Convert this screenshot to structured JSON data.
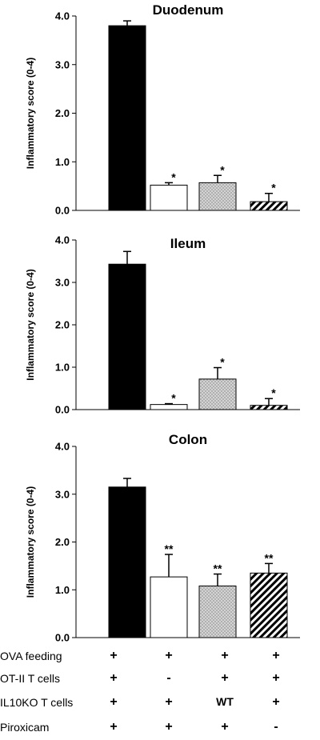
{
  "chart_data": [
    {
      "type": "bar",
      "title": "Duodenum",
      "ylabel": "Inflammatory score (0-4)",
      "ylim": [
        0,
        4
      ],
      "yticks": [
        "0.0",
        "1.0",
        "2.0",
        "3.0",
        "4.0"
      ],
      "values": [
        3.8,
        0.52,
        0.57,
        0.18
      ],
      "errors": [
        0.1,
        0.05,
        0.15,
        0.17
      ],
      "annotations": [
        "",
        "*",
        "*",
        "*"
      ]
    },
    {
      "type": "bar",
      "title": "Ileum",
      "ylabel": "Inflammatory score (0-4)",
      "ylim": [
        0,
        4
      ],
      "yticks": [
        "0.0",
        "1.0",
        "2.0",
        "3.0",
        "4.0"
      ],
      "values": [
        3.43,
        0.12,
        0.72,
        0.1
      ],
      "errors": [
        0.3,
        0.02,
        0.27,
        0.16
      ],
      "annotations": [
        "",
        "*",
        "*",
        "*"
      ]
    },
    {
      "type": "bar",
      "title": "Colon",
      "ylabel": "Inflammatory score (0-4)",
      "ylim": [
        0,
        4
      ],
      "yticks": [
        "0.0",
        "1.0",
        "2.0",
        "3.0",
        "4.0"
      ],
      "values": [
        3.15,
        1.27,
        1.08,
        1.35
      ],
      "errors": [
        0.18,
        0.47,
        0.25,
        0.2
      ],
      "annotations": [
        "",
        "**",
        "**",
        "**"
      ]
    }
  ],
  "bar_styles": [
    {
      "fill": "#000000",
      "pattern": "solid"
    },
    {
      "fill": "#ffffff",
      "pattern": "none"
    },
    {
      "fill": "#c8c8c8",
      "pattern": "dots"
    },
    {
      "fill": "#ffffff",
      "pattern": "diagonal-stripes"
    }
  ],
  "conditions": {
    "rows": [
      {
        "label": "OVA feeding",
        "values": [
          "+",
          "+",
          "+",
          "+"
        ]
      },
      {
        "label": "OT-II T cells",
        "values": [
          "+",
          "-",
          "+",
          "+"
        ]
      },
      {
        "label": "IL10KO T cells",
        "values": [
          "+",
          "+",
          "WT",
          "+"
        ]
      },
      {
        "label": "Piroxicam",
        "values": [
          "+",
          "+",
          "+",
          "-"
        ]
      }
    ]
  }
}
